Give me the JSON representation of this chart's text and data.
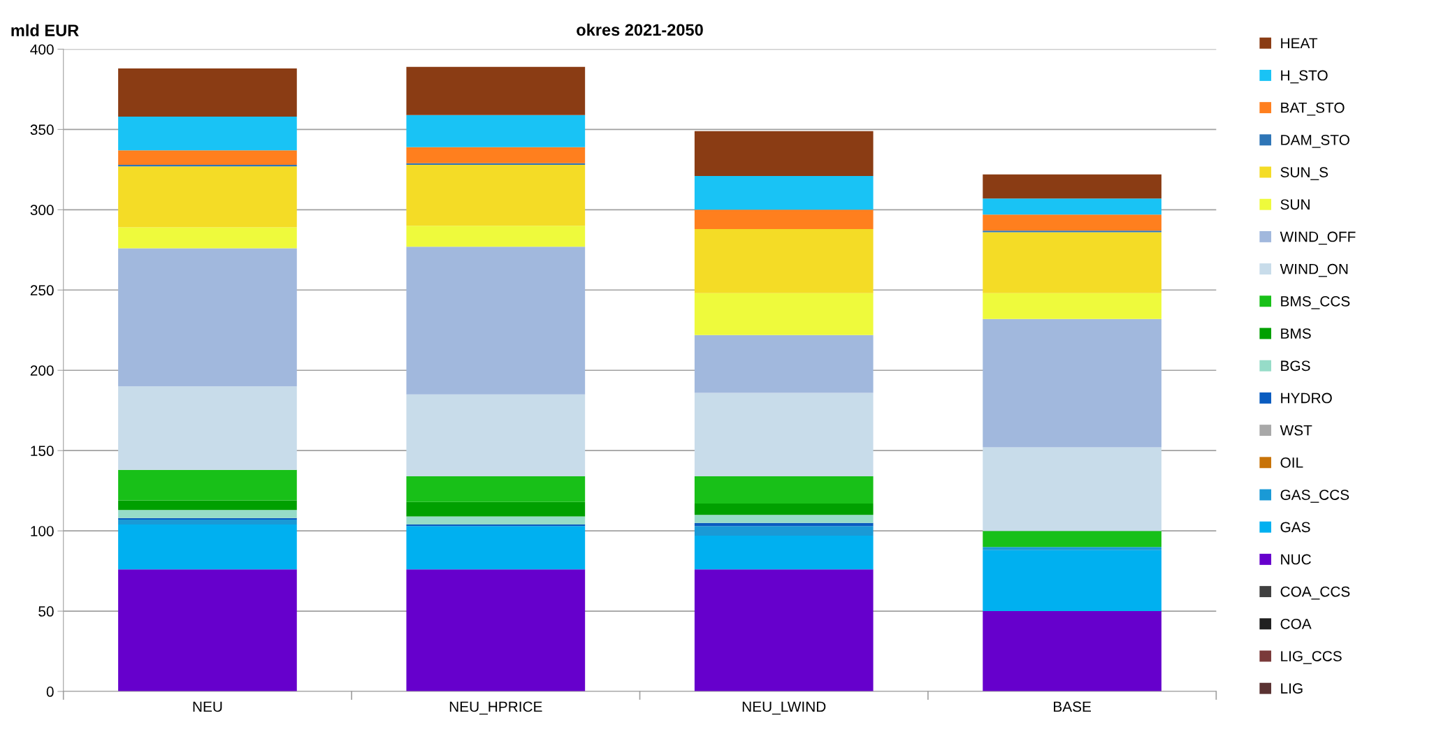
{
  "chart_data": {
    "type": "bar",
    "title": "okres 2021-2050",
    "ylabel": "mld EUR",
    "stacked": true,
    "categories": [
      "NEU",
      "NEU_HPRICE",
      "NEU_LWIND",
      "BASE"
    ],
    "series": [
      {
        "name": "LIG",
        "color": "#5a3232",
        "values": [
          0,
          0,
          0,
          0
        ]
      },
      {
        "name": "LIG_CCS",
        "color": "#7a3a3a",
        "values": [
          0,
          0,
          0,
          0
        ]
      },
      {
        "name": "COA",
        "color": "#202020",
        "values": [
          0,
          0,
          0,
          0
        ]
      },
      {
        "name": "COA_CCS",
        "color": "#404040",
        "values": [
          0,
          0,
          0,
          0
        ]
      },
      {
        "name": "NUC",
        "color": "#6600cc",
        "values": [
          76,
          76,
          76,
          50
        ]
      },
      {
        "name": "GAS",
        "color": "#00b0f0",
        "values": [
          28,
          27,
          21,
          38
        ]
      },
      {
        "name": "GAS_CCS",
        "color": "#1a9ad6",
        "values": [
          3,
          0,
          6,
          2
        ]
      },
      {
        "name": "OIL",
        "color": "#c87308",
        "values": [
          0,
          0,
          0,
          0
        ]
      },
      {
        "name": "WST",
        "color": "#a8a8a8",
        "values": [
          0,
          0,
          0,
          0
        ]
      },
      {
        "name": "HYDRO",
        "color": "#0a5cc0",
        "values": [
          1,
          1,
          2,
          0
        ]
      },
      {
        "name": "BGS",
        "color": "#96dcc8",
        "values": [
          5,
          5,
          5,
          0
        ]
      },
      {
        "name": "BMS",
        "color": "#00a000",
        "values": [
          6,
          9,
          7,
          0
        ]
      },
      {
        "name": "BMS_CCS",
        "color": "#18c018",
        "values": [
          19,
          16,
          17,
          10
        ]
      },
      {
        "name": "WIND_ON",
        "color": "#c8dcea",
        "values": [
          52,
          51,
          52,
          52
        ]
      },
      {
        "name": "WIND_OFF",
        "color": "#a1b8dd",
        "values": [
          86,
          92,
          36,
          80
        ]
      },
      {
        "name": "SUN",
        "color": "#eefa3c",
        "values": [
          13,
          13,
          26,
          16
        ]
      },
      {
        "name": "SUN_S",
        "color": "#f4dc26",
        "values": [
          38,
          38,
          40,
          38
        ]
      },
      {
        "name": "DAM_STO",
        "color": "#2e75b6",
        "values": [
          1,
          1,
          0,
          1
        ]
      },
      {
        "name": "BAT_STO",
        "color": "#ff7f1e",
        "values": [
          9,
          10,
          12,
          10
        ]
      },
      {
        "name": "H_STO",
        "color": "#19c3f5",
        "values": [
          21,
          20,
          21,
          10
        ]
      },
      {
        "name": "HEAT",
        "color": "#8a3c14",
        "values": [
          30,
          30,
          28,
          15
        ]
      }
    ],
    "ylim": [
      0,
      400
    ],
    "yticks": [
      0,
      50,
      100,
      150,
      200,
      250,
      300,
      350,
      400
    ],
    "grid": "y",
    "legend": "right"
  }
}
